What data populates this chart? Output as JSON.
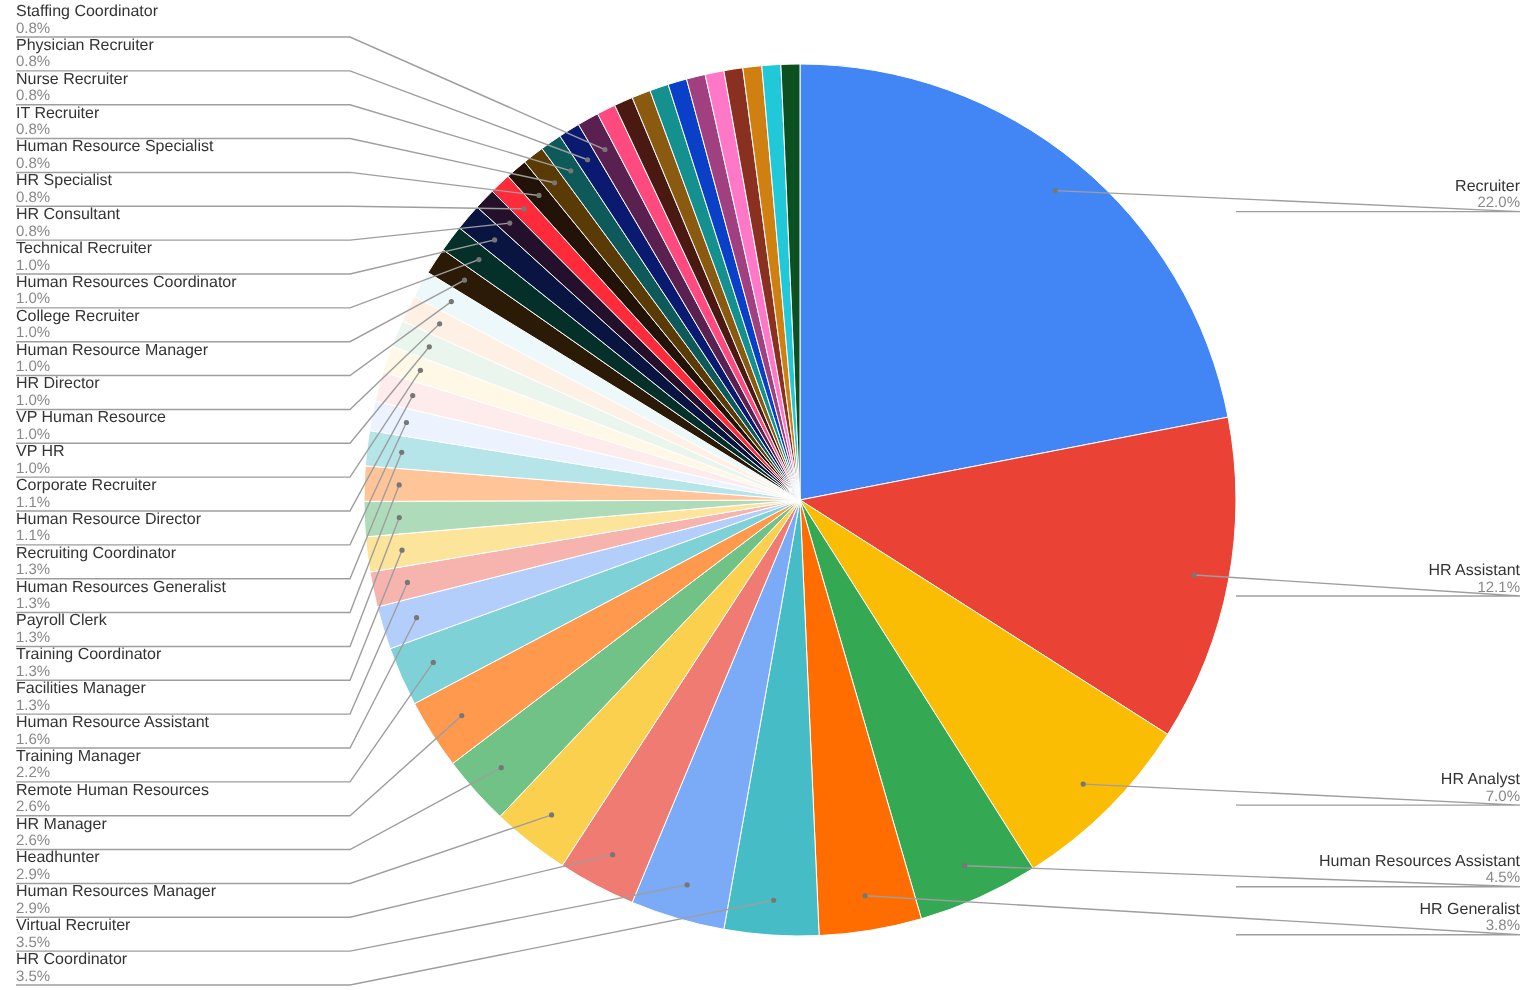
{
  "chart_data": {
    "type": "pie",
    "categories": [
      "Recruiter",
      "HR Assistant",
      "HR Analyst",
      "Human Resources Assistant",
      "HR Generalist",
      "HR Coordinator",
      "Virtual Recruiter",
      "Human Resources Manager",
      "Headhunter",
      "HR Manager",
      "Remote Human Resources",
      "Training Manager",
      "Human Resource Assistant",
      "Facilities Manager",
      "Training Coordinator",
      "Payroll Clerk",
      "Human Resources Generalist",
      "Recruiting Coordinator",
      "Human Resource Director",
      "Corporate Recruiter",
      "VP HR",
      "VP Human Resource",
      "HR Director",
      "Human Resource Manager",
      "College Recruiter",
      "Human Resources Coordinator",
      "Technical Recruiter",
      "HR Consultant",
      "HR Specialist",
      "Human Resource Specialist",
      "IT Recruiter",
      "Nurse Recruiter",
      "Physician Recruiter",
      "Staffing Coordinator",
      null,
      null,
      null,
      null,
      null,
      null,
      null,
      null,
      null,
      null,
      null
    ],
    "values": [
      22.0,
      12.1,
      7.0,
      4.5,
      3.8,
      3.5,
      3.5,
      2.9,
      2.9,
      2.6,
      2.6,
      2.2,
      1.6,
      1.3,
      1.3,
      1.3,
      1.3,
      1.3,
      1.1,
      1.1,
      1.0,
      1.0,
      1.0,
      1.0,
      1.0,
      1.0,
      1.0,
      0.8,
      0.8,
      0.8,
      0.8,
      0.8,
      0.8,
      0.8,
      0.7,
      0.7,
      0.7,
      0.7,
      0.7,
      0.7,
      0.7,
      0.7,
      0.7,
      0.7,
      0.7
    ],
    "value_labels": [
      "22.0%",
      "12.1%",
      "7.0%",
      "4.5%",
      "3.8%",
      "3.5%",
      "3.5%",
      "2.9%",
      "2.9%",
      "2.6%",
      "2.6%",
      "2.2%",
      "1.6%",
      "1.3%",
      "1.3%",
      "1.3%",
      "1.3%",
      "1.3%",
      "1.1%",
      "1.1%",
      "1.0%",
      "1.0%",
      "1.0%",
      "1.0%",
      "1.0%",
      "1.0%",
      "1.0%",
      "0.8%",
      "0.8%",
      "0.8%",
      "0.8%",
      "0.8%",
      "0.8%",
      "0.8%",
      null,
      null,
      null,
      null,
      null,
      null,
      null,
      null,
      null,
      null,
      null
    ],
    "colors": [
      "#4285f4",
      "#ea4335",
      "#fbbc04",
      "#34a853",
      "#ff6d01",
      "#46bdc6",
      "#7baaf7",
      "#f07b72",
      "#fcd04f",
      "#71c287",
      "#ff994d",
      "#7ed1d7",
      "#b3cefb",
      "#f7b4ae",
      "#fde49b",
      "#aedcba",
      "#ffc599",
      "#b5e5e8",
      "#ecf3fe",
      "#fdeceb",
      "#fff8e6",
      "#eaf6ed",
      "#fff0e6",
      "#ecf8f9",
      "#2b1a05",
      "#05302a",
      "#0a1440",
      "#24102a",
      "#ff2a3a",
      "#231208",
      "#5a3a05",
      "#0e5a5a",
      "#0a1a70",
      "#5a2050",
      "#ff4a80",
      "#4a1a12",
      "#8a5a10",
      "#14908f",
      "#0a40c8",
      "#a04080",
      "#ff78c8",
      "#8a3020",
      "#d08010",
      "#20c8d8",
      "#0a5020"
    ],
    "legend": false
  }
}
